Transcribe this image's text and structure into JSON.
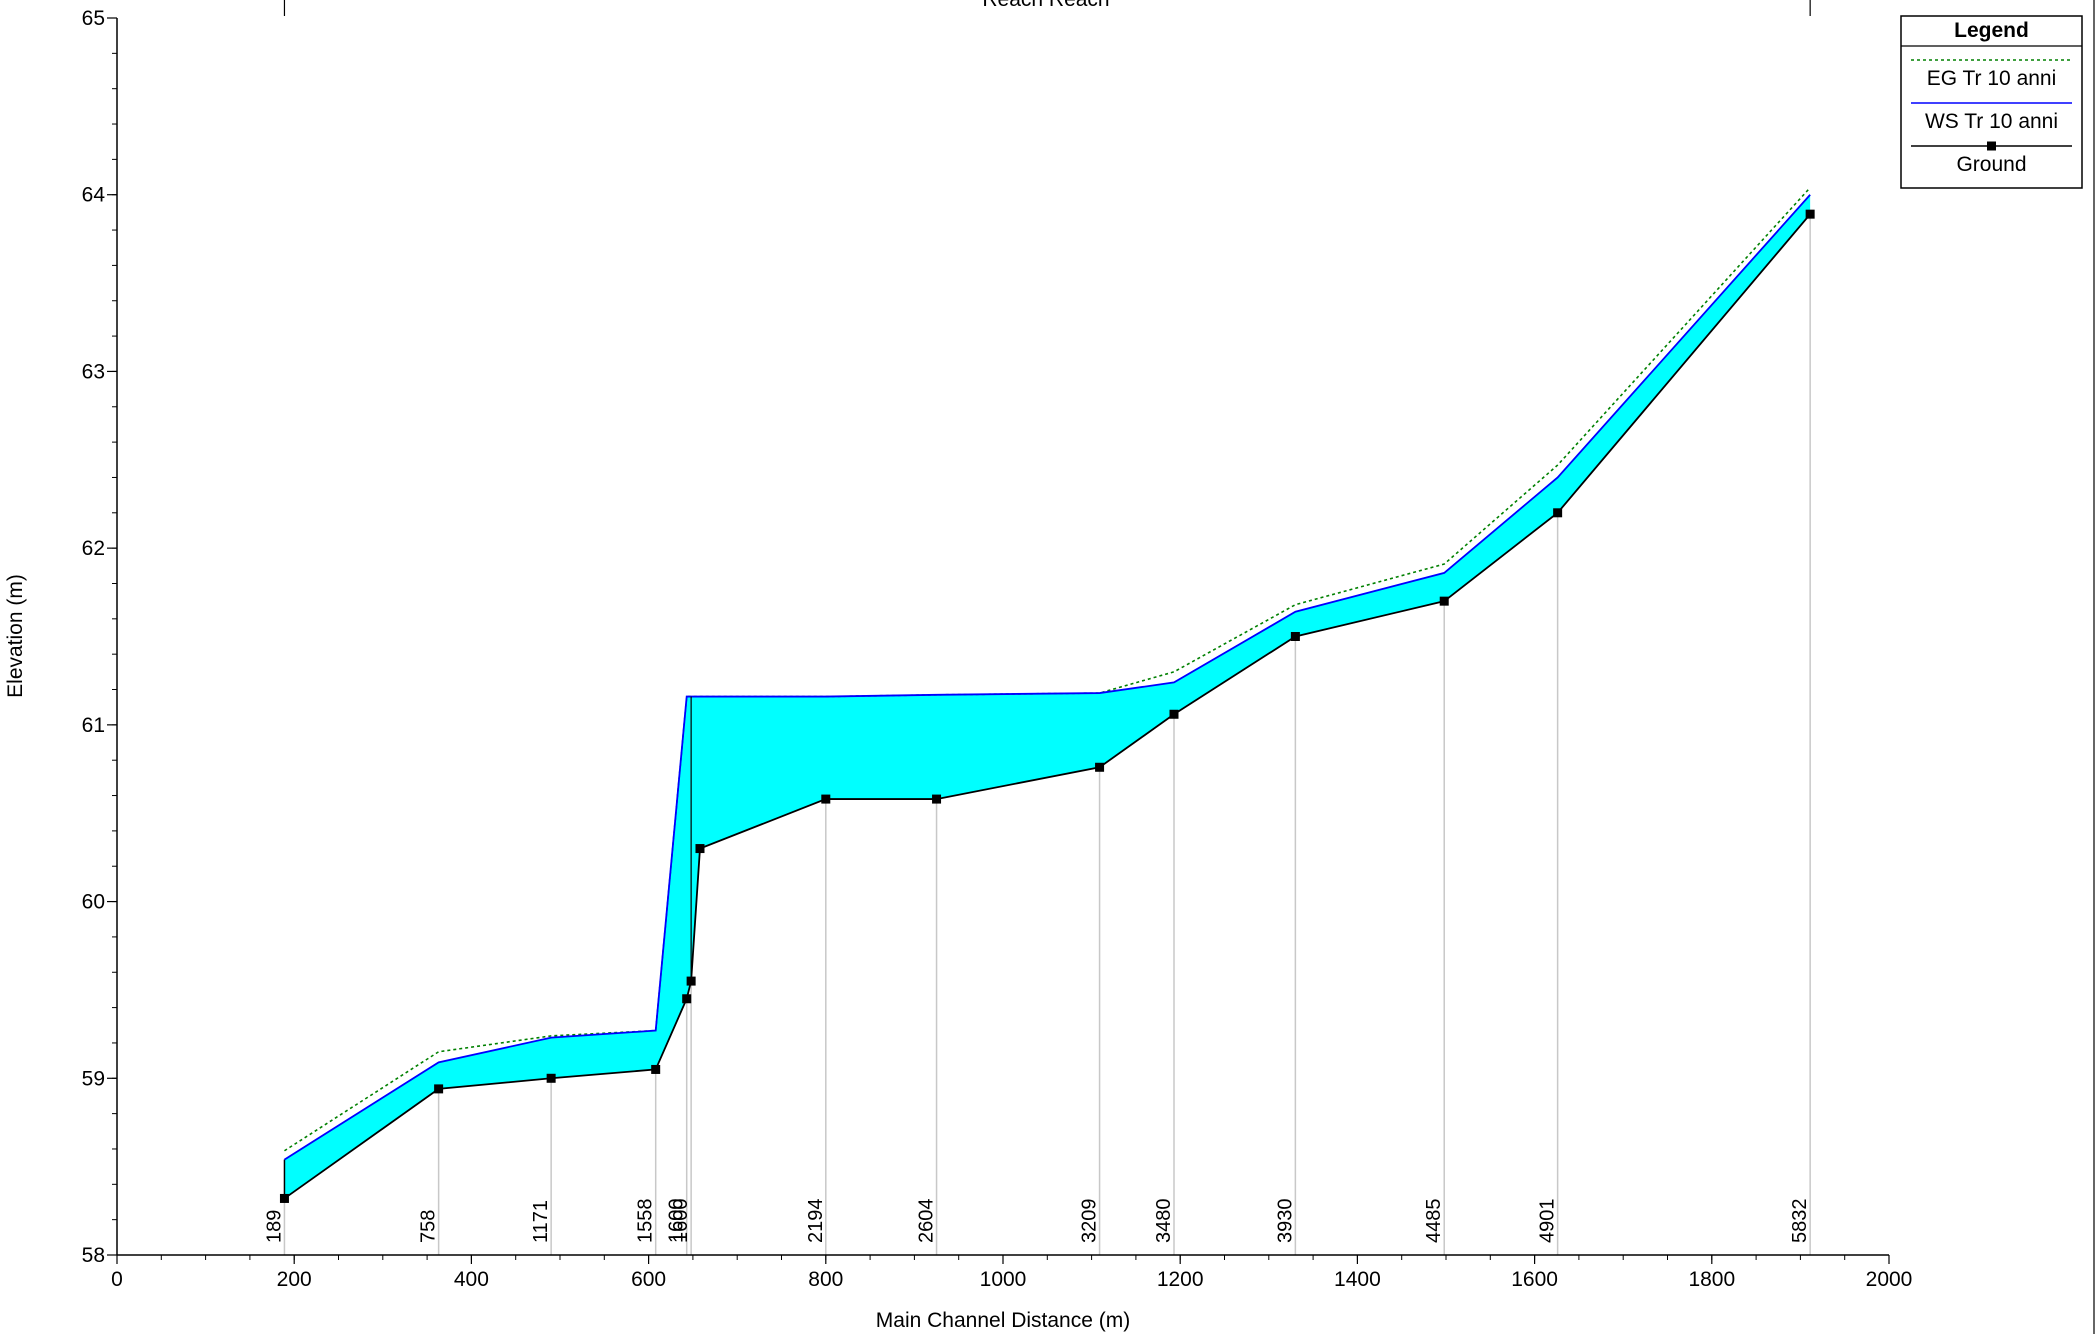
{
  "chart_data": {
    "type": "area",
    "title": "Reach Reach",
    "xlabel": "Main Channel Distance (m)",
    "ylabel": "Elevation (m)",
    "xlim": [
      0,
      2000
    ],
    "ylim": [
      58,
      65
    ],
    "x_ticks": [
      0,
      200,
      400,
      600,
      800,
      1000,
      1200,
      1400,
      1600,
      1800,
      2000
    ],
    "y_ticks": [
      58,
      59,
      60,
      61,
      62,
      63,
      64,
      65
    ],
    "x_minor_step": 50,
    "y_minor_step": 0.2,
    "grid": false,
    "legend": {
      "title": "Legend",
      "placement": "top-right",
      "entries": [
        "EG  Tr 10 anni",
        "WS  Tr 10 anni",
        "Ground"
      ]
    },
    "stations": [
      {
        "label": "189",
        "x": 189,
        "ground": 58.32,
        "ws": 58.54,
        "eg": 58.59
      },
      {
        "label": "758",
        "x": 363,
        "ground": 58.94,
        "ws": 59.09,
        "eg": 59.15
      },
      {
        "label": "1171",
        "x": 490,
        "ground": 59.0,
        "ws": 59.23,
        "eg": 59.24
      },
      {
        "label": "1558",
        "x": 608,
        "ground": 59.05,
        "ws": 59.27,
        "eg": 59.27
      },
      {
        "label": "1600",
        "x": 643,
        "ground": 59.45,
        "ws": 61.16,
        "eg": 61.16
      },
      {
        "label": "1600",
        "x": 648,
        "ground": 59.55,
        "ws": 61.16,
        "eg": 61.16
      },
      {
        "label": "",
        "x": 658,
        "ground": 60.3,
        "ws": 61.16,
        "eg": 61.16
      },
      {
        "label": "2194",
        "x": 800,
        "ground": 60.58,
        "ws": 61.16,
        "eg": 61.16
      },
      {
        "label": "2604",
        "x": 925,
        "ground": 60.58,
        "ws": 61.17,
        "eg": 61.17
      },
      {
        "label": "3209",
        "x": 1109,
        "ground": 60.76,
        "ws": 61.18,
        "eg": 61.18
      },
      {
        "label": "3480",
        "x": 1193,
        "ground": 61.06,
        "ws": 61.24,
        "eg": 61.3
      },
      {
        "label": "3930",
        "x": 1330,
        "ground": 61.5,
        "ws": 61.64,
        "eg": 61.68
      },
      {
        "label": "4485",
        "x": 1498,
        "ground": 61.7,
        "ws": 61.86,
        "eg": 61.91
      },
      {
        "label": "4901",
        "x": 1626,
        "ground": 62.2,
        "ws": 62.4,
        "eg": 62.47
      },
      {
        "label": "5832",
        "x": 1911,
        "ground": 63.89,
        "ws": 64.0,
        "eg": 64.04
      }
    ],
    "series": [
      {
        "name": "EG  Tr 10 anni",
        "color": "#008000",
        "style": "dotted"
      },
      {
        "name": "WS  Tr 10 anni",
        "color": "#0000ff",
        "style": "solid",
        "fill": "#00ffff"
      },
      {
        "name": "Ground",
        "color": "#000000",
        "style": "solid",
        "marker": "square"
      }
    ],
    "station_line_color": "#c8c8c8"
  }
}
